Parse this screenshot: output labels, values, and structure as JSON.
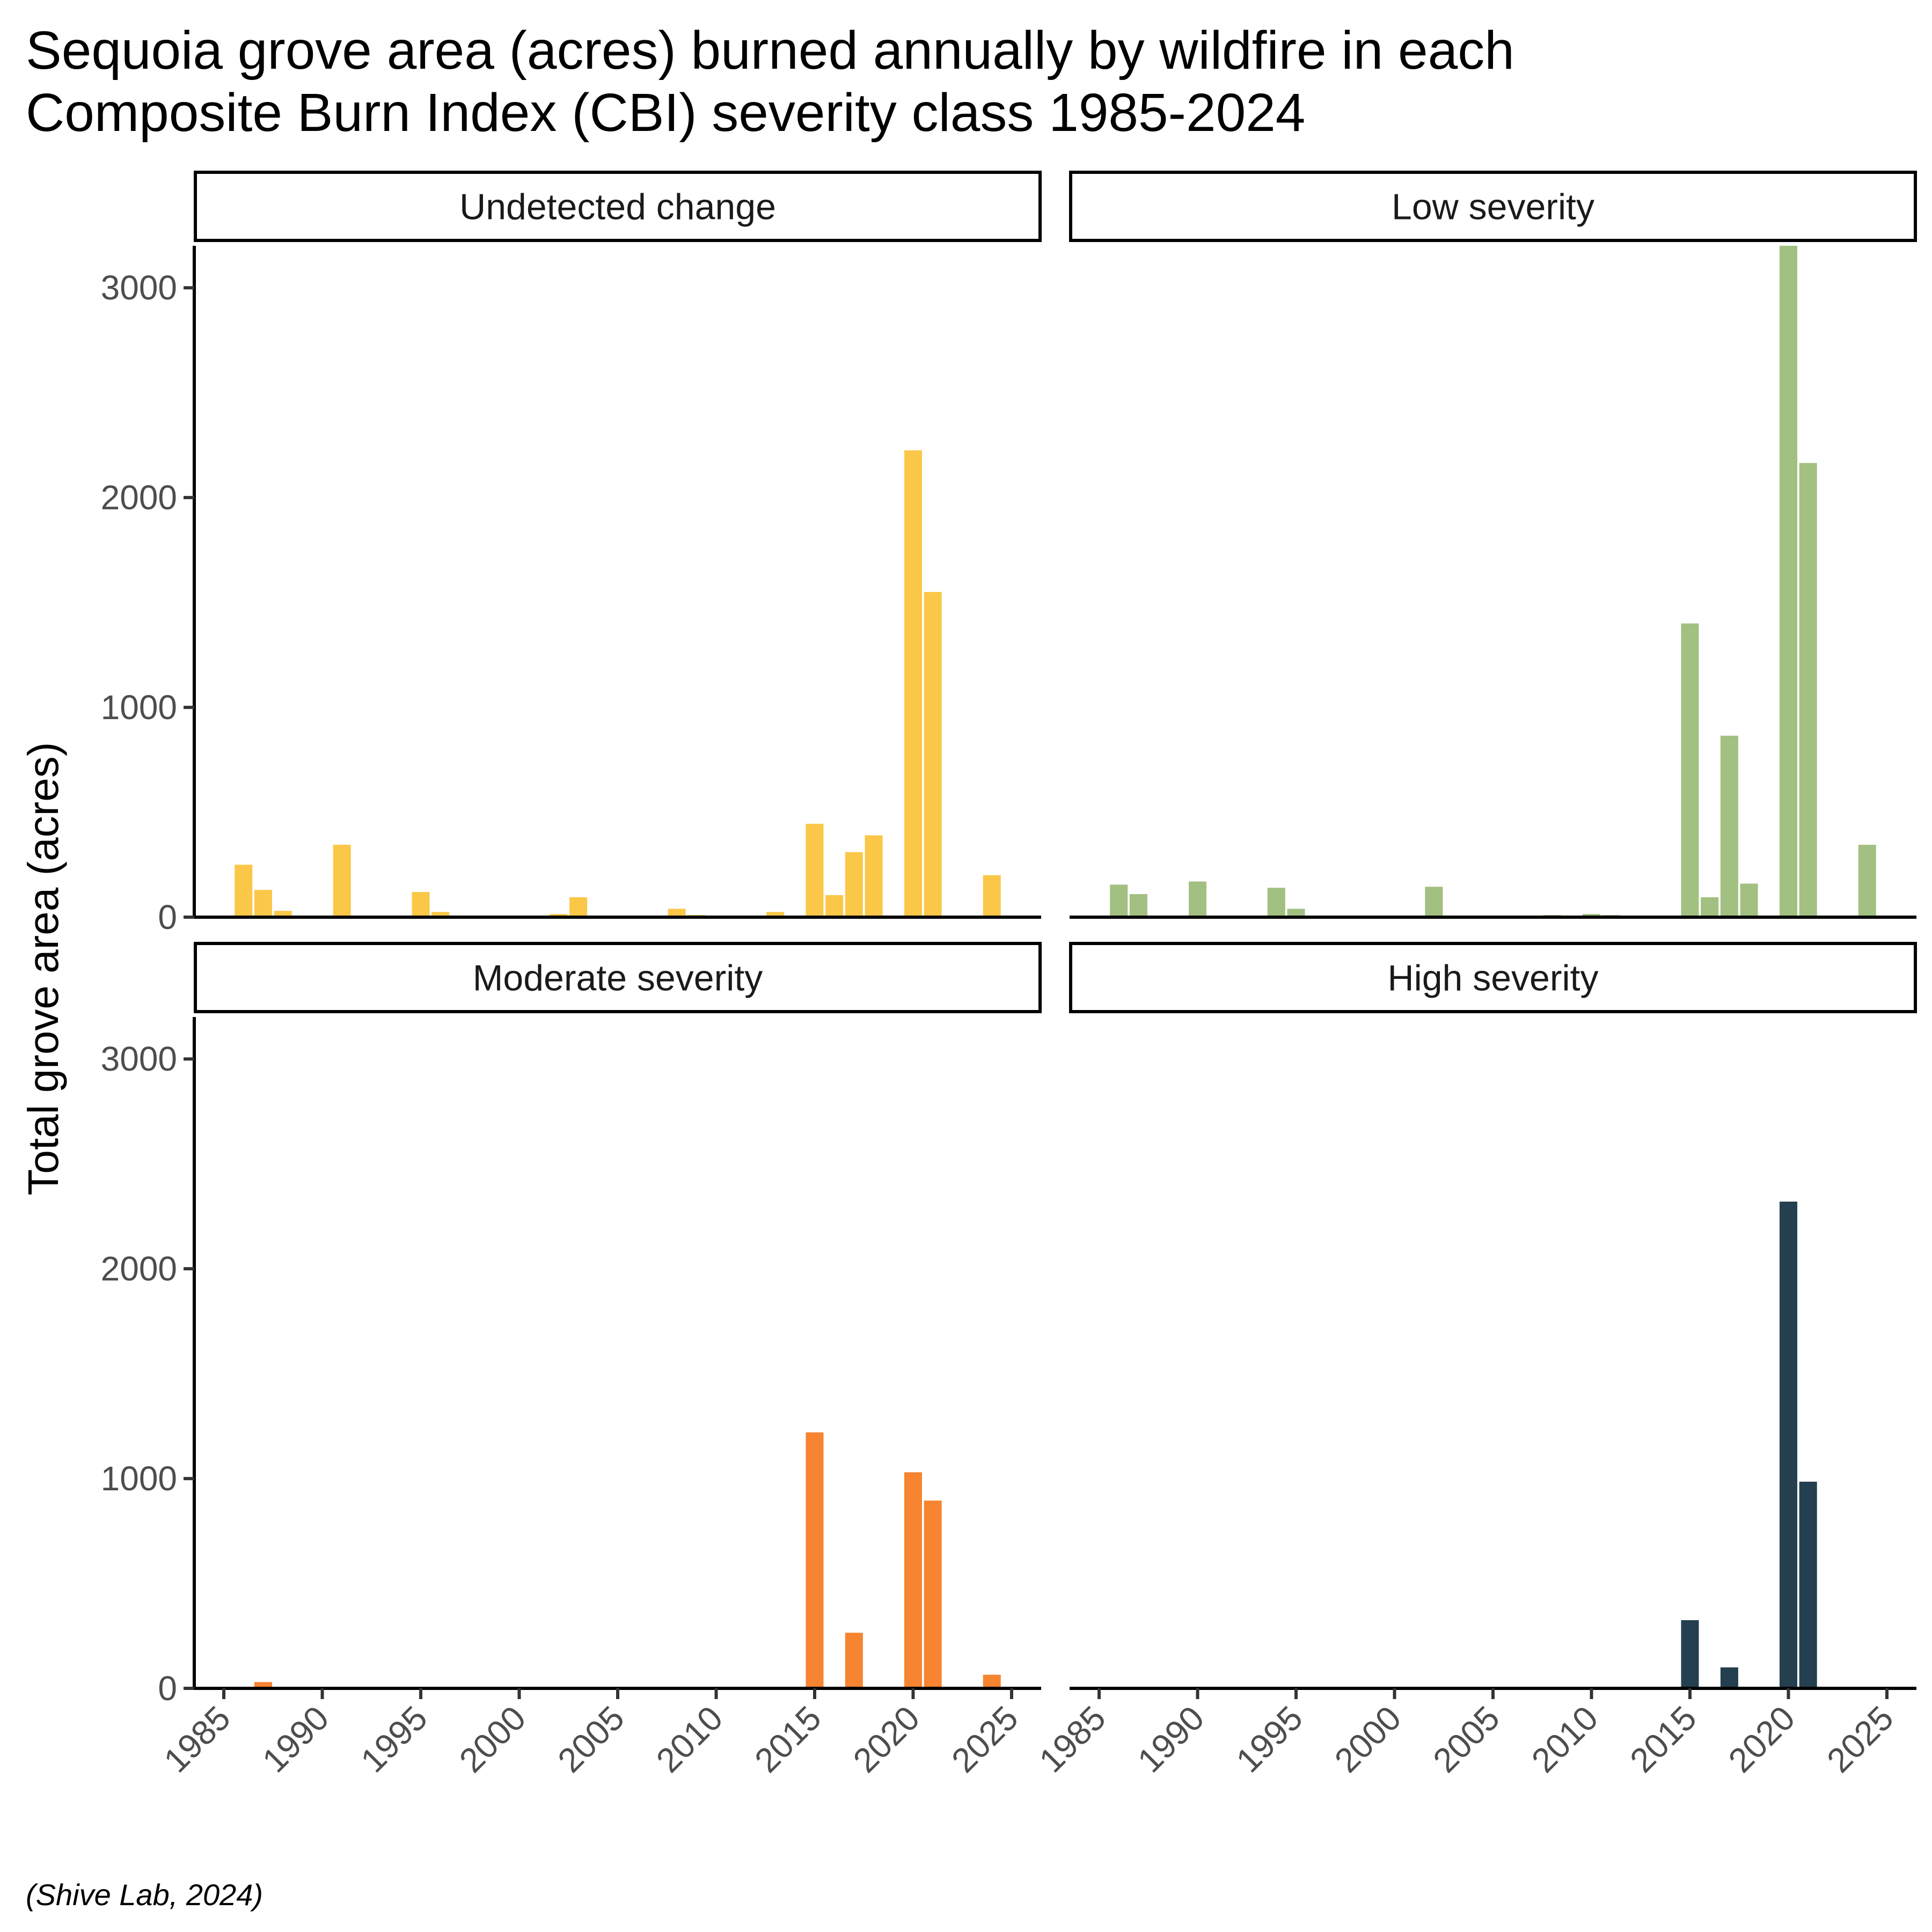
{
  "title": [
    "Sequoia grove area (acres) burned annually by wildfire in each",
    "Composite Burn Index (CBI) severity class 1985-2024"
  ],
  "caption": "(Shive Lab, 2024)",
  "chart_data": {
    "type": "bar",
    "layout": "facet-grid-2x2",
    "ylabel": "Total grove area (acres)",
    "xlabel": "",
    "xlim": [
      1983.5,
      2026.5
    ],
    "ylim": [
      0,
      3200
    ],
    "x_ticks": [
      1985,
      1990,
      1995,
      2000,
      2005,
      2010,
      2015,
      2020,
      2025
    ],
    "y_ticks": [
      0,
      1000,
      2000,
      3000
    ],
    "grid": false,
    "legend": "none",
    "facets": [
      {
        "name": "Undetected change",
        "color": "#FBC748",
        "x": [
          1986,
          1987,
          1988,
          1991,
          1994,
          1995,
          1996,
          1997,
          2002,
          2003,
          2006,
          2008,
          2009,
          2010,
          2011,
          2013,
          2015,
          2016,
          2017,
          2018,
          2020,
          2021,
          2022,
          2024
        ],
        "values": [
          250,
          130,
          30,
          345,
          5,
          120,
          25,
          8,
          15,
          95,
          5,
          40,
          10,
          5,
          8,
          25,
          445,
          105,
          310,
          390,
          2225,
          1550,
          5,
          200
        ]
      },
      {
        "name": "Low severity",
        "color": "#A2C081",
        "x": [
          1986,
          1987,
          1988,
          1990,
          1994,
          1995,
          2002,
          2008,
          2010,
          2011,
          2015,
          2016,
          2017,
          2018,
          2020,
          2021,
          2022,
          2024
        ],
        "values": [
          155,
          110,
          5,
          170,
          140,
          40,
          145,
          10,
          15,
          10,
          1400,
          95,
          865,
          160,
          3200,
          2165,
          5,
          345
        ]
      },
      {
        "name": "Moderate severity",
        "color": "#F78430",
        "x": [
          1987,
          1991,
          2015,
          2017,
          2020,
          2021,
          2024
        ],
        "values": [
          30,
          5,
          1220,
          265,
          1030,
          895,
          65
        ]
      },
      {
        "name": "High severity",
        "color": "#243F4F",
        "x": [
          2015,
          2017,
          2020,
          2021
        ],
        "values": [
          325,
          100,
          2320,
          985
        ]
      }
    ]
  }
}
